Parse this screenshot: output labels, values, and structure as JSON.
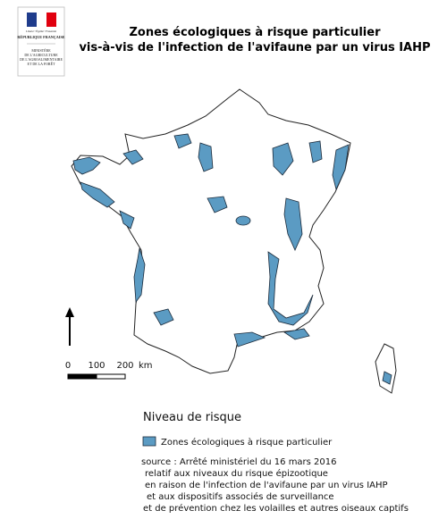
{
  "logo": {
    "motto": "Liberté • Égalité • Fraternité",
    "republic": "RÉPUBLIQUE FRANÇAISE",
    "ministry": [
      "MINISTÈRE",
      "DE L'AGRICULTURE",
      "DE L'AGROALIMENTAIRE",
      "ET DE LA FORÊT"
    ]
  },
  "header": {
    "title": [
      "Zones écologiques à risque particulier",
      "vis-à-vis de l'infection de l'avifaune par un virus IAHP"
    ]
  },
  "scale": {
    "labels": [
      "0",
      "100",
      "200"
    ],
    "unit": "km"
  },
  "legend": {
    "title": "Niveau de risque",
    "items": [
      "Zones écologiques à risque particulier"
    ]
  },
  "source": [
    "source : Arrêté ministériel du 16 mars 2016",
    "relatif aux niveaux du risque épizootique",
    "en raison de l'infection de l'avifaune par un virus IAHP",
    "et aux dispositifs associés de surveillance",
    "et de prévention chez les volailles et autres oiseaux captifs"
  ]
}
